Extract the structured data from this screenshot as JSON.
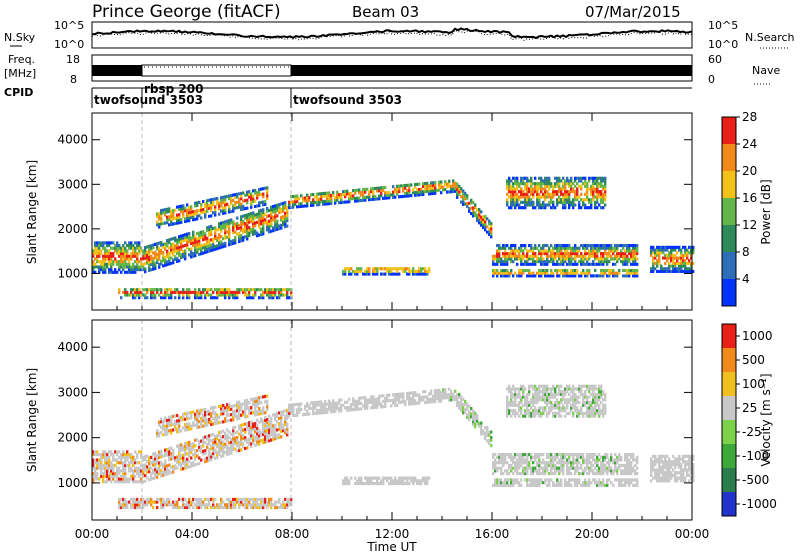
{
  "header": {
    "station": "Prince George (fitACF)",
    "beam": "Beam 03",
    "date": "07/Mar/2015"
  },
  "nsky_panel": {
    "left_label": "N.Sky",
    "left_ticks": [
      "10^5",
      "10^0"
    ],
    "right_ticks": [
      "10^5",
      "10^0"
    ],
    "right_label": "N.Search"
  },
  "freq_panel": {
    "left_label_1": "Freq.",
    "left_label_2": "[MHz]",
    "left_ticks": [
      "18",
      "8"
    ],
    "right_ticks": [
      "60",
      "0"
    ],
    "right_label": "Nave"
  },
  "cpid_panel": {
    "label": "CPID",
    "segments": [
      "twofsound 3503",
      "rbsp 200",
      "twofsound 3503"
    ]
  },
  "chart_data": [
    {
      "type": "heatmap",
      "title": "",
      "xlabel": "",
      "ylabel": "Slant Range [km]",
      "x_ticks": [
        "00:00",
        "04:00",
        "08:00",
        "12:00",
        "16:00",
        "20:00",
        "00:00"
      ],
      "y_ticks": [
        "1000",
        "2000",
        "3000",
        "4000"
      ],
      "xlim": [
        0,
        24
      ],
      "ylim": [
        180,
        4600
      ],
      "colorbar": {
        "label": "Power [dB]",
        "ticks": [
          "4",
          "8",
          "12",
          "16",
          "20",
          "24",
          "28"
        ],
        "colors": [
          "#0033ff",
          "#2e6db8",
          "#2f8a5a",
          "#63b54a",
          "#f2c21a",
          "#f08a1a",
          "#e82018"
        ]
      }
    },
    {
      "type": "heatmap",
      "title": "",
      "xlabel": "Time UT",
      "ylabel": "Slant Range [km]",
      "x_ticks": [
        "00:00",
        "04:00",
        "08:00",
        "12:00",
        "16:00",
        "20:00",
        "00:00"
      ],
      "y_ticks": [
        "1000",
        "2000",
        "3000",
        "4000"
      ],
      "xlim": [
        0,
        24
      ],
      "ylim": [
        180,
        4600
      ],
      "colorbar": {
        "label": "Velocity [m s⁻¹]",
        "ticks": [
          "1000",
          "500",
          "100",
          "25",
          "-25",
          "-100",
          "-500",
          "-1000"
        ],
        "colors": [
          "#2233cc",
          "#2a7d4a",
          "#3da93a",
          "#7cd04a",
          "#c8c8c8",
          "#f0c020",
          "#f08a1a",
          "#e82018"
        ]
      }
    }
  ]
}
